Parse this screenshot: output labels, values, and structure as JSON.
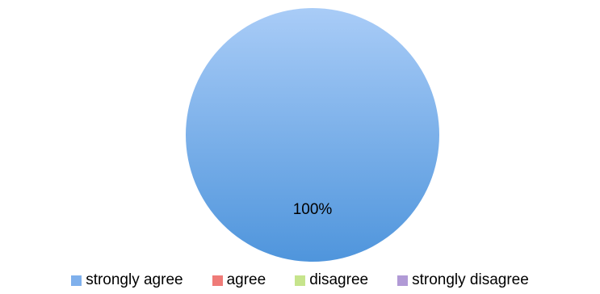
{
  "chart_data": {
    "type": "pie",
    "categories": [
      "strongly agree",
      "agree",
      "disagree",
      "strongly disagree"
    ],
    "values": [
      100,
      0,
      0,
      0
    ],
    "data_labels": [
      "100%",
      "",
      "",
      ""
    ],
    "colors": [
      "#7fb0ec",
      "#ef7b78",
      "#c6e48c",
      "#b19ad6"
    ],
    "legend_position": "bottom"
  }
}
